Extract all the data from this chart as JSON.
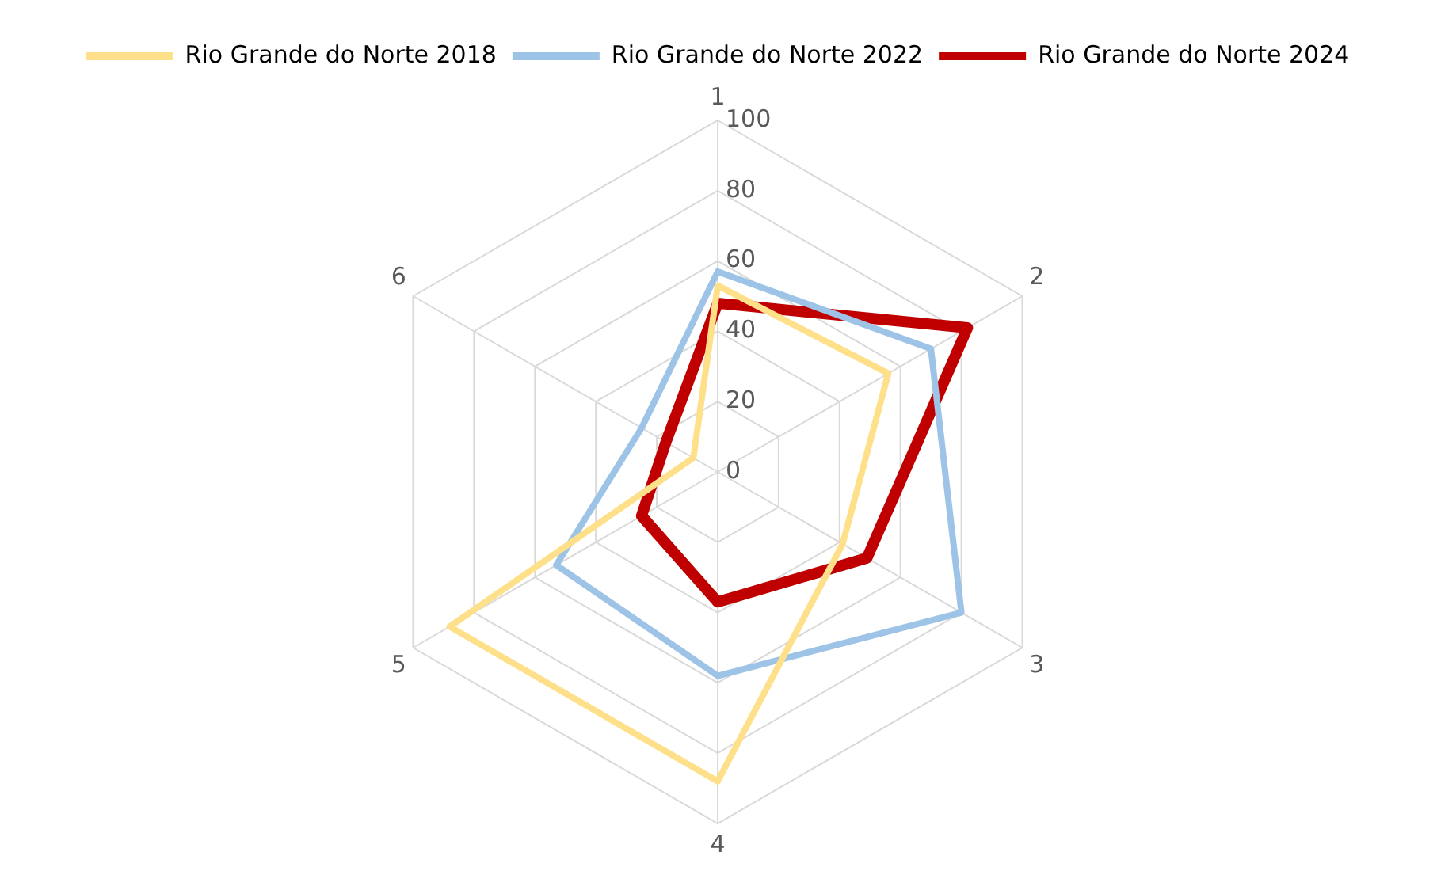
{
  "chart_data": {
    "type": "radar",
    "categories": [
      "1",
      "2",
      "3",
      "4",
      "5",
      "6"
    ],
    "series": [
      {
        "name": "Rio Grande do Norte 2018",
        "color": "#ffe08a",
        "values": [
          53,
          56,
          41,
          88,
          88,
          8
        ]
      },
      {
        "name": "Rio Grande do Norte 2022",
        "color": "#9dc3e6",
        "values": [
          57,
          70,
          80,
          58,
          53,
          25
        ]
      },
      {
        "name": "Rio Grande do Norte 2024",
        "color": "#c00000",
        "values": [
          48,
          82,
          49,
          37,
          25,
          17
        ]
      }
    ],
    "ylim": [
      0,
      100
    ],
    "yticks": [
      0,
      20,
      40,
      60,
      80,
      100
    ],
    "grid": true,
    "legend": "top",
    "marker": "none"
  }
}
